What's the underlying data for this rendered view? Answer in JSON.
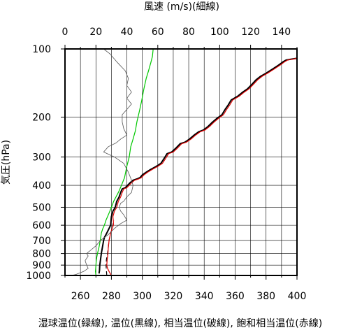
{
  "chart_data": {
    "type": "line",
    "title_top": "風速 (m/s)(細線)",
    "xlabel": "湿球温位(緑線), 温位(黒線), 相当温位(破線), 飽和相当温位(赤線)",
    "ylabel": "気圧(hPa)",
    "x_bottom_range": [
      250,
      400
    ],
    "x_bottom_ticks": [
      260,
      280,
      300,
      320,
      340,
      360,
      380,
      400
    ],
    "x_top_range": [
      0,
      150
    ],
    "x_top_ticks": [
      0,
      20,
      40,
      60,
      80,
      100,
      120,
      140
    ],
    "y_scale": "log",
    "y_range": [
      1000,
      100
    ],
    "y_ticks": [
      100,
      200,
      300,
      400,
      500,
      600,
      700,
      800,
      900,
      1000
    ],
    "grid": true,
    "series": [
      {
        "name": "湿球温位",
        "color": "#00c800",
        "dash": "",
        "axis": "bottom",
        "points": [
          [
            270.0,
            1000
          ],
          [
            269.7,
            960
          ],
          [
            270.0,
            900
          ],
          [
            270.3,
            850
          ],
          [
            271.0,
            800
          ],
          [
            272.0,
            750
          ],
          [
            272.8,
            700
          ],
          [
            273.5,
            650
          ],
          [
            274.5,
            620
          ],
          [
            275.5,
            600
          ],
          [
            276.5,
            570
          ],
          [
            277.5,
            550
          ],
          [
            278.5,
            530
          ],
          [
            280.0,
            500
          ],
          [
            281.5,
            470
          ],
          [
            283.0,
            450
          ],
          [
            284.5,
            430
          ],
          [
            286.5,
            400
          ],
          [
            288.5,
            370
          ],
          [
            290.0,
            330
          ],
          [
            291.5,
            300
          ],
          [
            292.5,
            270
          ],
          [
            294.0,
            250
          ],
          [
            295.5,
            230
          ],
          [
            296.5,
            210
          ],
          [
            298.0,
            190
          ],
          [
            299.5,
            170
          ],
          [
            301.0,
            150
          ],
          [
            302.5,
            135
          ],
          [
            304.0,
            125
          ],
          [
            305.5,
            115
          ],
          [
            306.5,
            108
          ],
          [
            307.0,
            100
          ]
        ]
      },
      {
        "name": "温位",
        "color": "#000000",
        "dash": "",
        "axis": "bottom",
        "points": [
          [
            272.0,
            980
          ],
          [
            272.3,
            950
          ],
          [
            272.5,
            900
          ],
          [
            273.0,
            850
          ],
          [
            273.5,
            800
          ],
          [
            274.2,
            750
          ],
          [
            275.0,
            700
          ],
          [
            275.5,
            680
          ],
          [
            277.0,
            650
          ],
          [
            278.5,
            620
          ],
          [
            279.5,
            600
          ],
          [
            279.7,
            580
          ],
          [
            280.0,
            550
          ],
          [
            281.0,
            520
          ],
          [
            282.5,
            500
          ],
          [
            283.5,
            470
          ],
          [
            285.0,
            450
          ],
          [
            286.0,
            430
          ],
          [
            287.0,
            415
          ],
          [
            289.0,
            410
          ],
          [
            290.5,
            400
          ],
          [
            292.0,
            390
          ],
          [
            294.0,
            380
          ],
          [
            296.5,
            375
          ],
          [
            298.5,
            370
          ],
          [
            300.0,
            360
          ],
          [
            302.5,
            350
          ],
          [
            305.5,
            340
          ],
          [
            309.0,
            330
          ],
          [
            312.0,
            320
          ],
          [
            314.0,
            305
          ],
          [
            316.0,
            290
          ],
          [
            319.0,
            285
          ],
          [
            321.5,
            275
          ],
          [
            324.5,
            262
          ],
          [
            327.5,
            258
          ],
          [
            330.5,
            250
          ],
          [
            333.5,
            240
          ],
          [
            336.5,
            232
          ],
          [
            339.5,
            228
          ],
          [
            342.5,
            220
          ],
          [
            345.5,
            210
          ],
          [
            348.5,
            202
          ],
          [
            351.5,
            195
          ],
          [
            353.5,
            185
          ],
          [
            355.5,
            177
          ],
          [
            357.5,
            168
          ],
          [
            361.5,
            162
          ],
          [
            365.0,
            155
          ],
          [
            368.0,
            150
          ],
          [
            371.0,
            143
          ],
          [
            373.5,
            137
          ],
          [
            376.5,
            132
          ],
          [
            380.0,
            128
          ],
          [
            384.0,
            123
          ],
          [
            388.0,
            118
          ],
          [
            391.0,
            114
          ],
          [
            393.0,
            112
          ],
          [
            396.0,
            111
          ],
          [
            400.0,
            110
          ]
        ]
      },
      {
        "name": "相当温位",
        "color": "#000000",
        "dash": "6,4",
        "axis": "bottom",
        "points": [
          [
            277.0,
            1000
          ],
          [
            276.8,
            950
          ],
          [
            276.5,
            900
          ],
          [
            276.8,
            850
          ],
          [
            277.5,
            800
          ],
          [
            278.0,
            750
          ],
          [
            278.5,
            700
          ],
          [
            279.5,
            650
          ],
          [
            280.5,
            620
          ],
          [
            281.0,
            600
          ],
          [
            281.5,
            570
          ]
        ]
      },
      {
        "name": "飽和相当温位",
        "color": "#e00000",
        "dash": "",
        "axis": "bottom",
        "points": [
          [
            280.0,
            1000
          ],
          [
            278.5,
            960
          ],
          [
            277.5,
            930
          ],
          [
            277.0,
            900
          ],
          [
            277.3,
            850
          ],
          [
            277.8,
            800
          ],
          [
            278.0,
            750
          ],
          [
            278.5,
            700
          ],
          [
            279.5,
            650
          ],
          [
            280.5,
            620
          ],
          [
            281.3,
            600
          ],
          [
            281.3,
            580
          ],
          [
            281.0,
            550
          ],
          [
            282.0,
            520
          ],
          [
            283.5,
            500
          ],
          [
            284.5,
            470
          ],
          [
            286.0,
            450
          ],
          [
            287.0,
            430
          ],
          [
            288.0,
            415
          ],
          [
            290.0,
            410
          ],
          [
            291.5,
            400
          ],
          [
            293.0,
            390
          ],
          [
            295.0,
            380
          ],
          [
            297.5,
            375
          ],
          [
            299.5,
            370
          ],
          [
            301.0,
            360
          ],
          [
            303.5,
            350
          ],
          [
            306.5,
            340
          ],
          [
            310.0,
            330
          ],
          [
            313.0,
            320
          ],
          [
            315.0,
            305
          ],
          [
            317.0,
            290
          ],
          [
            320.0,
            285
          ],
          [
            322.5,
            275
          ],
          [
            325.5,
            262
          ],
          [
            328.5,
            258
          ],
          [
            331.5,
            250
          ],
          [
            334.5,
            240
          ],
          [
            337.5,
            232
          ],
          [
            340.5,
            228
          ],
          [
            343.5,
            220
          ],
          [
            346.5,
            210
          ],
          [
            349.5,
            202
          ],
          [
            352.5,
            195
          ],
          [
            354.5,
            185
          ],
          [
            356.5,
            177
          ],
          [
            358.5,
            168
          ],
          [
            362.5,
            162
          ],
          [
            366.0,
            155
          ],
          [
            369.0,
            150
          ],
          [
            372.0,
            143
          ],
          [
            374.5,
            137
          ],
          [
            377.5,
            132
          ],
          [
            381.0,
            128
          ],
          [
            385.0,
            123
          ],
          [
            389.0,
            118
          ],
          [
            392.0,
            114
          ],
          [
            394.0,
            112
          ],
          [
            397.0,
            111
          ],
          [
            400.0,
            110
          ]
        ]
      },
      {
        "name": "風速",
        "color": "#555555",
        "dash": "",
        "axis": "top",
        "thin": true,
        "points": [
          [
            4,
            1000
          ],
          [
            7,
            990
          ],
          [
            12,
            960
          ],
          [
            15,
            930
          ],
          [
            14,
            900
          ],
          [
            13,
            860
          ],
          [
            15,
            820
          ],
          [
            14,
            800
          ],
          [
            16,
            780
          ],
          [
            20,
            740
          ],
          [
            23,
            700
          ],
          [
            28,
            660
          ],
          [
            32,
            620
          ],
          [
            36,
            590
          ],
          [
            40,
            570
          ],
          [
            38,
            540
          ],
          [
            36,
            520
          ],
          [
            35,
            500
          ],
          [
            36,
            480
          ],
          [
            38,
            470
          ],
          [
            40,
            450
          ],
          [
            43,
            430
          ],
          [
            44,
            400
          ],
          [
            43,
            380
          ],
          [
            41,
            350
          ],
          [
            38,
            320
          ],
          [
            32,
            300
          ],
          [
            25,
            285
          ],
          [
            28,
            270
          ],
          [
            33,
            260
          ],
          [
            36,
            250
          ],
          [
            40,
            240
          ],
          [
            38,
            225
          ],
          [
            37,
            210
          ],
          [
            37,
            195
          ],
          [
            40,
            185
          ],
          [
            43,
            175
          ],
          [
            40,
            165
          ],
          [
            43,
            155
          ],
          [
            40,
            145
          ],
          [
            41,
            135
          ],
          [
            39,
            125
          ],
          [
            34,
            115
          ],
          [
            29,
            105
          ],
          [
            25,
            100
          ]
        ]
      }
    ]
  }
}
